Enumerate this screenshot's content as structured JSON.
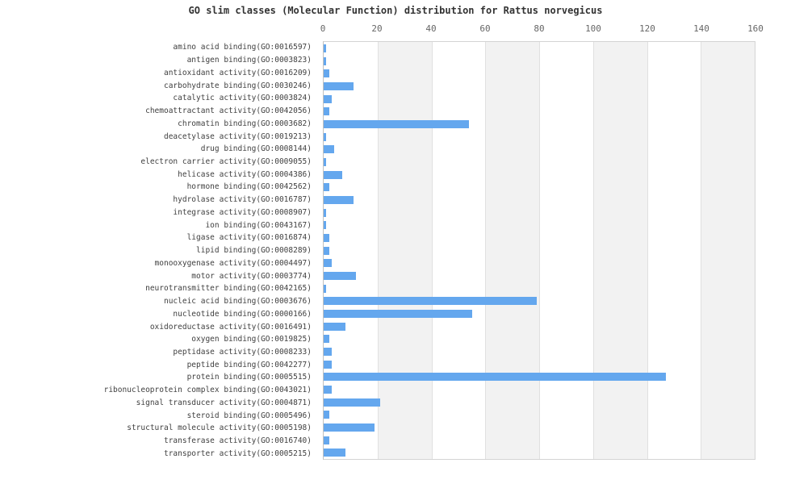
{
  "chart_data": {
    "type": "bar",
    "orientation": "horizontal",
    "title": "GO slim classes (Molecular Function) distribution for Rattus norvegicus",
    "xlabel": "",
    "ylabel": "",
    "xlim": [
      0,
      160
    ],
    "x_ticks": [
      0,
      20,
      40,
      60,
      80,
      100,
      120,
      140,
      160
    ],
    "tick_position": "top",
    "legend": "none",
    "grid": "alternating vertical bands every 20 units with light gridlines",
    "bar_color": "#64a7ee",
    "band_color": "#f2f2f2",
    "categories": [
      "amino acid binding(GO:0016597)",
      "antigen binding(GO:0003823)",
      "antioxidant activity(GO:0016209)",
      "carbohydrate binding(GO:0030246)",
      "catalytic activity(GO:0003824)",
      "chemoattractant activity(GO:0042056)",
      "chromatin binding(GO:0003682)",
      "deacetylase activity(GO:0019213)",
      "drug binding(GO:0008144)",
      "electron carrier activity(GO:0009055)",
      "helicase activity(GO:0004386)",
      "hormone binding(GO:0042562)",
      "hydrolase activity(GO:0016787)",
      "integrase activity(GO:0008907)",
      "ion binding(GO:0043167)",
      "ligase activity(GO:0016874)",
      "lipid binding(GO:0008289)",
      "monooxygenase activity(GO:0004497)",
      "motor activity(GO:0003774)",
      "neurotransmitter binding(GO:0042165)",
      "nucleic acid binding(GO:0003676)",
      "nucleotide binding(GO:0000166)",
      "oxidoreductase activity(GO:0016491)",
      "oxygen binding(GO:0019825)",
      "peptidase activity(GO:0008233)",
      "peptide binding(GO:0042277)",
      "protein binding(GO:0005515)",
      "ribonucleoprotein complex binding(GO:0043021)",
      "signal transducer activity(GO:0004871)",
      "steroid binding(GO:0005496)",
      "structural molecule activity(GO:0005198)",
      "transferase activity(GO:0016740)",
      "transporter activity(GO:0005215)"
    ],
    "values": [
      1,
      1,
      2,
      11,
      3,
      2,
      54,
      1,
      4,
      1,
      7,
      2,
      11,
      1,
      1,
      2,
      2,
      3,
      12,
      1,
      79,
      55,
      8,
      2,
      3,
      3,
      127,
      3,
      21,
      2,
      19,
      2,
      8
    ]
  }
}
